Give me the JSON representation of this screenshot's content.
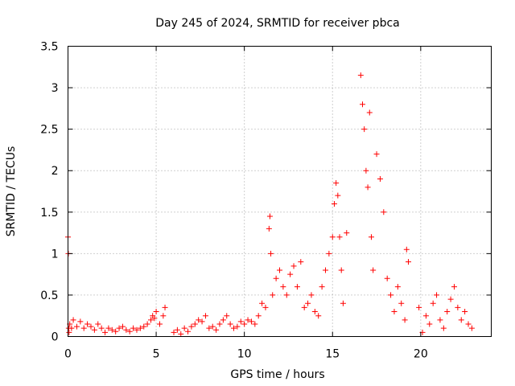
{
  "chart_data": {
    "type": "scatter",
    "title": "Day 245 of 2024, SRMTID for receiver pbca",
    "xlabel": "GPS time / hours",
    "ylabel": "SRMTID / TECUs",
    "xlim": [
      0,
      24
    ],
    "ylim": [
      0,
      3.5
    ],
    "x_ticks": [
      0,
      5,
      10,
      15,
      20
    ],
    "x_tick_labels": [
      "0",
      "5",
      "10",
      "15",
      "20"
    ],
    "y_ticks": [
      0,
      0.5,
      1,
      1.5,
      2,
      2.5,
      3,
      3.5
    ],
    "y_tick_labels": [
      "0",
      "0.5",
      "1",
      "1.5",
      "2",
      "2.5",
      "3",
      "3.5"
    ],
    "grid": true,
    "marker": "+",
    "series_color": "#ff0000",
    "series": [
      {
        "name": "SRMTID",
        "x": [
          0,
          0.02,
          0.04,
          0.06,
          0.1,
          0.2,
          0.3,
          0.5,
          0.7,
          0.9,
          1.1,
          1.3,
          1.5,
          1.7,
          1.9,
          2.1,
          2.3,
          2.5,
          2.7,
          2.9,
          3.1,
          3.3,
          3.5,
          3.7,
          3.9,
          4.1,
          4.3,
          4.5,
          4.7,
          4.8,
          4.9,
          5.0,
          5.2,
          5.4,
          5.5,
          6.0,
          6.2,
          6.4,
          6.6,
          6.8,
          7.0,
          7.2,
          7.4,
          7.6,
          7.8,
          8.0,
          8.2,
          8.4,
          8.6,
          8.8,
          9.0,
          9.2,
          9.4,
          9.6,
          9.8,
          10.0,
          10.2,
          10.4,
          10.6,
          10.8,
          11.0,
          11.2,
          11.4,
          11.45,
          11.5,
          11.6,
          11.8,
          12.0,
          12.2,
          12.4,
          12.6,
          12.8,
          13.0,
          13.2,
          13.4,
          13.6,
          13.8,
          14.0,
          14.2,
          14.4,
          14.6,
          14.8,
          15.0,
          15.1,
          15.2,
          15.3,
          15.4,
          15.5,
          15.6,
          15.8,
          16.6,
          16.7,
          16.8,
          16.9,
          17.0,
          17.1,
          17.2,
          17.3,
          17.5,
          17.7,
          17.9,
          18.1,
          18.3,
          18.5,
          18.7,
          18.9,
          19.1,
          19.2,
          19.3,
          19.9,
          20.1,
          20.3,
          20.5,
          20.7,
          20.9,
          21.1,
          21.3,
          21.5,
          21.7,
          21.9,
          22.1,
          22.3,
          22.5,
          22.7,
          22.9
        ],
        "y": [
          1.2,
          1.0,
          0.1,
          0.05,
          0.15,
          0.1,
          0.2,
          0.12,
          0.18,
          0.1,
          0.15,
          0.12,
          0.08,
          0.15,
          0.1,
          0.05,
          0.1,
          0.08,
          0.06,
          0.1,
          0.12,
          0.08,
          0.06,
          0.1,
          0.08,
          0.1,
          0.12,
          0.15,
          0.2,
          0.25,
          0.22,
          0.3,
          0.15,
          0.25,
          0.35,
          0.05,
          0.08,
          0.03,
          0.1,
          0.06,
          0.12,
          0.15,
          0.2,
          0.18,
          0.25,
          0.1,
          0.12,
          0.08,
          0.15,
          0.2,
          0.25,
          0.15,
          0.1,
          0.12,
          0.18,
          0.15,
          0.2,
          0.18,
          0.15,
          0.25,
          0.4,
          0.35,
          1.3,
          1.45,
          1.0,
          0.5,
          0.7,
          0.8,
          0.6,
          0.5,
          0.75,
          0.85,
          0.6,
          0.9,
          0.35,
          0.4,
          0.5,
          0.3,
          0.25,
          0.6,
          0.8,
          1.0,
          1.2,
          1.6,
          1.85,
          1.7,
          1.2,
          0.8,
          0.4,
          1.25,
          3.15,
          2.8,
          2.5,
          2.0,
          1.8,
          2.7,
          1.2,
          0.8,
          2.2,
          1.9,
          1.5,
          0.7,
          0.5,
          0.3,
          0.6,
          0.4,
          0.2,
          1.05,
          0.9,
          0.35,
          0.05,
          0.25,
          0.15,
          0.4,
          0.5,
          0.2,
          0.1,
          0.3,
          0.45,
          0.6,
          0.35,
          0.2,
          0.3,
          0.15,
          0.1
        ]
      }
    ]
  }
}
